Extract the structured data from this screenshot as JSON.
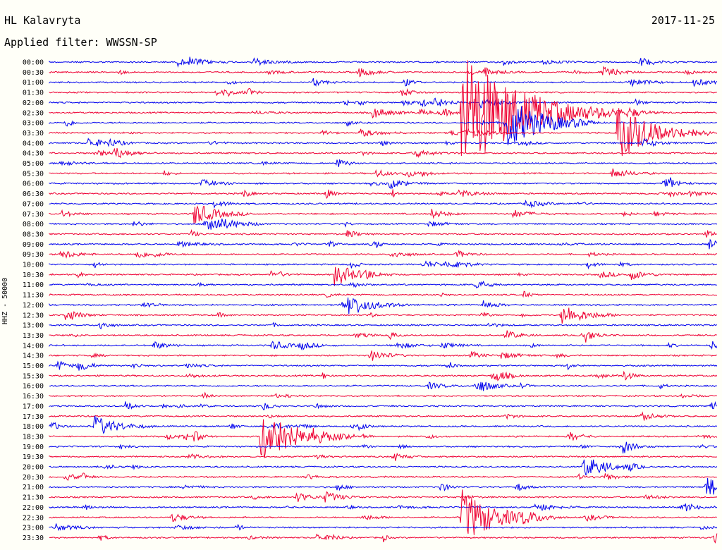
{
  "header": {
    "station": "HL Kalavryta",
    "date": "2017-11-25",
    "filter_label": "Applied filter: WWSSN-SP"
  },
  "channel_label": "HHZ - 50000",
  "colors": {
    "blue": "#0000ee",
    "red": "#ee0033"
  },
  "chart_data": {
    "type": "line",
    "title": "",
    "ylabel": "HHZ - 50000",
    "xlabel": "",
    "row_labels": [
      "00:00",
      "00:30",
      "01:00",
      "01:30",
      "02:00",
      "02:30",
      "03:00",
      "03:30",
      "04:00",
      "04:30",
      "05:00",
      "05:30",
      "06:00",
      "06:30",
      "07:00",
      "07:30",
      "08:00",
      "08:30",
      "09:00",
      "09:30",
      "10:00",
      "10:30",
      "11:00",
      "11:30",
      "12:00",
      "12:30",
      "13:00",
      "13:30",
      "14:00",
      "14:30",
      "15:00",
      "15:30",
      "16:00",
      "16:30",
      "17:00",
      "17:30",
      "18:00",
      "18:30",
      "19:00",
      "19:30",
      "20:00",
      "20:30",
      "21:00",
      "21:30",
      "22:00",
      "22:30",
      "23:00",
      "23:30"
    ],
    "row_colors": [
      "blue",
      "red"
    ],
    "events": [
      {
        "row": "02:30",
        "minute": 18.5,
        "amplitude": "very-large"
      },
      {
        "row": "03:00",
        "minute": 20.5,
        "amplitude": "large"
      },
      {
        "row": "03:30",
        "minute": 25.5,
        "amplitude": "large"
      },
      {
        "row": "07:30",
        "minute": 6.5,
        "amplitude": "medium"
      },
      {
        "row": "08:00",
        "minute": 7.0,
        "amplitude": "medium"
      },
      {
        "row": "10:30",
        "minute": 12.8,
        "amplitude": "medium"
      },
      {
        "row": "12:00",
        "minute": 13.4,
        "amplitude": "medium"
      },
      {
        "row": "12:30",
        "minute": 23.0,
        "amplitude": "medium"
      },
      {
        "row": "18:30",
        "minute": 9.5,
        "amplitude": "large"
      },
      {
        "row": "18:00",
        "minute": 2.0,
        "amplitude": "medium"
      },
      {
        "row": "20:00",
        "minute": 24.0,
        "amplitude": "medium"
      },
      {
        "row": "21:00",
        "minute": 29.5,
        "amplitude": "medium"
      },
      {
        "row": "22:30",
        "minute": 18.5,
        "amplitude": "large"
      }
    ]
  }
}
